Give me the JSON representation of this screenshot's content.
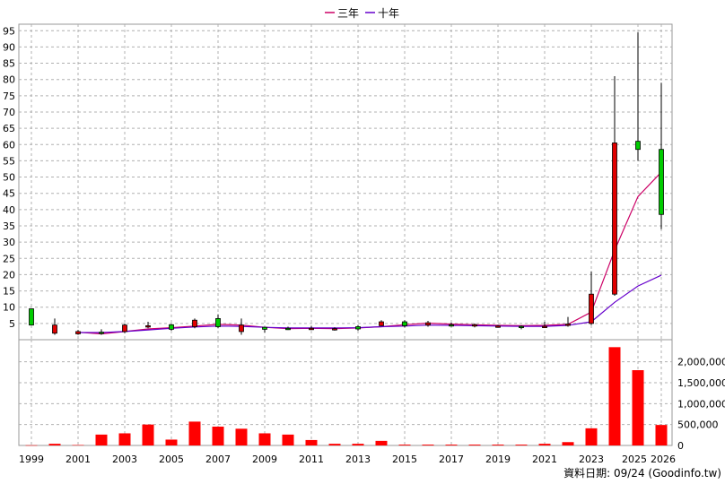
{
  "chart_data": [
    {
      "type": "candlestick",
      "panel": "price",
      "legend_position": "top-center",
      "grid": true,
      "x_labels": [
        "1999",
        "2001",
        "2003",
        "2005",
        "2007",
        "2009",
        "2011",
        "2013",
        "2015",
        "2017",
        "2019",
        "2021",
        "2023",
        "2025",
        "2026"
      ],
      "y_ticks": [
        5,
        10,
        15,
        20,
        25,
        30,
        35,
        40,
        45,
        50,
        55,
        60,
        65,
        70,
        75,
        80,
        85,
        90,
        95
      ],
      "ylim": [
        0,
        97
      ],
      "up_color": "#00cc00",
      "down_color": "#e00000",
      "candles": [
        {
          "year": 1999,
          "open": 4.5,
          "high": 9.5,
          "low": 4.5,
          "close": 9.5
        },
        {
          "year": 2000,
          "open": 4.5,
          "high": 6.5,
          "low": 1.5,
          "close": 2.0
        },
        {
          "year": 2001,
          "open": 2.5,
          "high": 3.0,
          "low": 1.5,
          "close": 1.8
        },
        {
          "year": 2002,
          "open": 2.2,
          "high": 3.2,
          "low": 1.5,
          "close": 2.3
        },
        {
          "year": 2003,
          "open": 4.5,
          "high": 5.0,
          "low": 2.0,
          "close": 2.5
        },
        {
          "year": 2004,
          "open": 4.3,
          "high": 5.5,
          "low": 3.5,
          "close": 4.0
        },
        {
          "year": 2005,
          "open": 3.2,
          "high": 4.8,
          "low": 2.8,
          "close": 4.6
        },
        {
          "year": 2006,
          "open": 6.0,
          "high": 6.5,
          "low": 3.5,
          "close": 4.0
        },
        {
          "year": 2007,
          "open": 4.0,
          "high": 7.8,
          "low": 3.5,
          "close": 6.5
        },
        {
          "year": 2008,
          "open": 4.5,
          "high": 6.5,
          "low": 1.5,
          "close": 2.5
        },
        {
          "year": 2009,
          "open": 3.2,
          "high": 4.0,
          "low": 2.2,
          "close": 3.8
        },
        {
          "year": 2010,
          "open": 3.5,
          "high": 4.0,
          "low": 3.0,
          "close": 3.5
        },
        {
          "year": 2011,
          "open": 3.5,
          "high": 4.2,
          "low": 3.0,
          "close": 3.4
        },
        {
          "year": 2012,
          "open": 3.4,
          "high": 3.8,
          "low": 2.8,
          "close": 3.3
        },
        {
          "year": 2013,
          "open": 3.3,
          "high": 4.5,
          "low": 2.8,
          "close": 4.0
        },
        {
          "year": 2014,
          "open": 5.5,
          "high": 6.0,
          "low": 4.2,
          "close": 4.3
        },
        {
          "year": 2015,
          "open": 4.3,
          "high": 6.0,
          "low": 3.8,
          "close": 5.5
        },
        {
          "year": 2016,
          "open": 5.2,
          "high": 5.8,
          "low": 4.0,
          "close": 4.5
        },
        {
          "year": 2017,
          "open": 4.5,
          "high": 5.2,
          "low": 4.0,
          "close": 4.6
        },
        {
          "year": 2018,
          "open": 4.6,
          "high": 5.0,
          "low": 3.8,
          "close": 4.2
        },
        {
          "year": 2019,
          "open": 4.2,
          "high": 4.5,
          "low": 3.8,
          "close": 4.0
        },
        {
          "year": 2020,
          "open": 4.0,
          "high": 4.4,
          "low": 3.2,
          "close": 4.1
        },
        {
          "year": 2021,
          "open": 4.1,
          "high": 5.5,
          "low": 3.8,
          "close": 4.0
        },
        {
          "year": 2022,
          "open": 4.8,
          "high": 7.0,
          "low": 4.0,
          "close": 4.5
        },
        {
          "year": 2023,
          "open": 14.0,
          "high": 21.0,
          "low": 4.5,
          "close": 5.0
        },
        {
          "year": 2024,
          "open": 60.5,
          "high": 81.0,
          "low": 13.5,
          "close": 14.0
        },
        {
          "year": 2025,
          "open": 58.5,
          "high": 94.5,
          "low": 55.0,
          "close": 61.0
        },
        {
          "year": 2026,
          "open": 38.5,
          "high": 79.0,
          "low": 34.0,
          "close": 58.5
        }
      ],
      "series": [
        {
          "name": "三年",
          "color": "#cc0066",
          "points": [
            {
              "year": 2001,
              "value": 2.3
            },
            {
              "year": 2002,
              "value": 1.8
            },
            {
              "year": 2003,
              "value": 2.5
            },
            {
              "year": 2004,
              "value": 3.3
            },
            {
              "year": 2005,
              "value": 3.7
            },
            {
              "year": 2006,
              "value": 4.2
            },
            {
              "year": 2007,
              "value": 4.7
            },
            {
              "year": 2008,
              "value": 4.5
            },
            {
              "year": 2009,
              "value": 3.8
            },
            {
              "year": 2010,
              "value": 3.4
            },
            {
              "year": 2011,
              "value": 3.5
            },
            {
              "year": 2012,
              "value": 3.4
            },
            {
              "year": 2013,
              "value": 3.6
            },
            {
              "year": 2014,
              "value": 4.0
            },
            {
              "year": 2015,
              "value": 4.6
            },
            {
              "year": 2016,
              "value": 5.1
            },
            {
              "year": 2017,
              "value": 4.8
            },
            {
              "year": 2018,
              "value": 4.6
            },
            {
              "year": 2019,
              "value": 4.4
            },
            {
              "year": 2020,
              "value": 4.3
            },
            {
              "year": 2021,
              "value": 4.4
            },
            {
              "year": 2022,
              "value": 4.7
            },
            {
              "year": 2023,
              "value": 8.5
            },
            {
              "year": 2024,
              "value": 27.5
            },
            {
              "year": 2025,
              "value": 44.0
            },
            {
              "year": 2026,
              "value": 51.5
            }
          ]
        },
        {
          "name": "十年",
          "color": "#6600cc",
          "points": [
            {
              "year": 2001,
              "value": 2.2
            },
            {
              "year": 2002,
              "value": 2.2
            },
            {
              "year": 2003,
              "value": 2.5
            },
            {
              "year": 2004,
              "value": 3.0
            },
            {
              "year": 2005,
              "value": 3.5
            },
            {
              "year": 2006,
              "value": 3.9
            },
            {
              "year": 2007,
              "value": 4.2
            },
            {
              "year": 2008,
              "value": 4.1
            },
            {
              "year": 2009,
              "value": 3.8
            },
            {
              "year": 2010,
              "value": 3.6
            },
            {
              "year": 2011,
              "value": 3.6
            },
            {
              "year": 2012,
              "value": 3.6
            },
            {
              "year": 2013,
              "value": 3.7
            },
            {
              "year": 2014,
              "value": 4.0
            },
            {
              "year": 2015,
              "value": 4.2
            },
            {
              "year": 2016,
              "value": 4.5
            },
            {
              "year": 2017,
              "value": 4.4
            },
            {
              "year": 2018,
              "value": 4.3
            },
            {
              "year": 2019,
              "value": 4.2
            },
            {
              "year": 2020,
              "value": 4.1
            },
            {
              "year": 2021,
              "value": 4.1
            },
            {
              "year": 2022,
              "value": 4.4
            },
            {
              "year": 2023,
              "value": 5.5
            },
            {
              "year": 2024,
              "value": 11.5
            },
            {
              "year": 2025,
              "value": 16.5
            },
            {
              "year": 2026,
              "value": 19.8
            }
          ]
        }
      ]
    },
    {
      "type": "bar",
      "panel": "volume",
      "bar_color": "#ff0000",
      "grid": true,
      "ylim": [
        0,
        2400000
      ],
      "y_ticks": [
        0,
        500000,
        1000000,
        1500000,
        2000000
      ],
      "y_tick_labels": [
        "0",
        "500,000",
        "1,000,000",
        "1,500,000",
        "2,000,000"
      ],
      "x": [
        1999,
        2000,
        2001,
        2002,
        2003,
        2004,
        2005,
        2006,
        2007,
        2008,
        2009,
        2010,
        2011,
        2012,
        2013,
        2014,
        2015,
        2016,
        2017,
        2018,
        2019,
        2020,
        2021,
        2022,
        2023,
        2024,
        2025,
        2026
      ],
      "values": [
        5000,
        40000,
        10000,
        260000,
        290000,
        500000,
        140000,
        570000,
        450000,
        400000,
        290000,
        260000,
        130000,
        40000,
        40000,
        110000,
        20000,
        20000,
        20000,
        20000,
        20000,
        20000,
        40000,
        80000,
        410000,
        2350000,
        1800000,
        490000
      ]
    }
  ],
  "footer_text": "資料日期: 09/24  (Goodinfo.tw)"
}
